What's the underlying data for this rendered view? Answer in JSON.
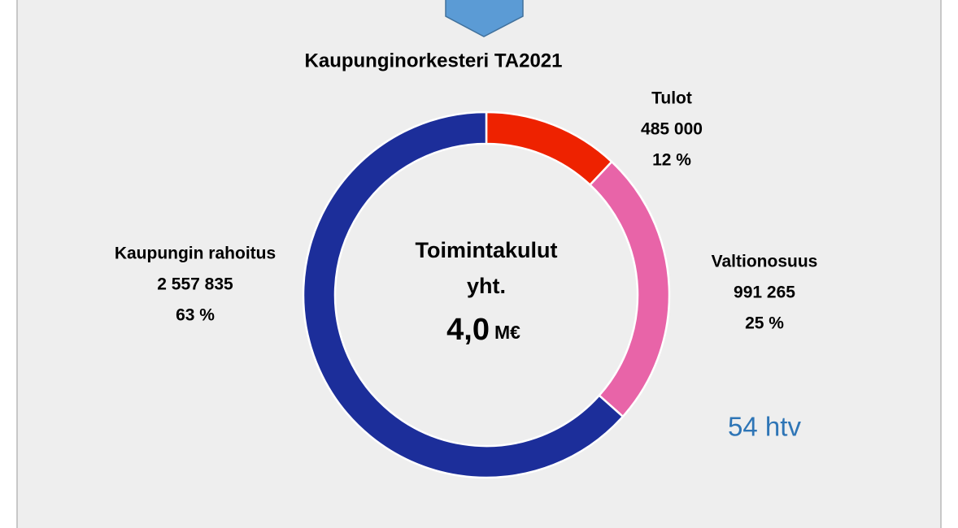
{
  "chart_data": {
    "type": "pie",
    "donut": true,
    "title": "Kaupunginorkesteri TA2021",
    "categories": [
      "Tulot",
      "Valtionosuus",
      "Kaupungin rahoitus"
    ],
    "values": [
      485000,
      991265,
      2557835
    ],
    "value_labels": [
      "485 000",
      "991 265",
      "2 557 835"
    ],
    "percent_labels": [
      "12 %",
      "25 %",
      "63 %"
    ],
    "colors": [
      "#ee2200",
      "#e864a8",
      "#1c2e9a"
    ],
    "center_text": [
      "Toimintakulut",
      "yht."
    ],
    "center_value": "4,0",
    "center_unit": "M€",
    "annotation": "54 htv"
  }
}
